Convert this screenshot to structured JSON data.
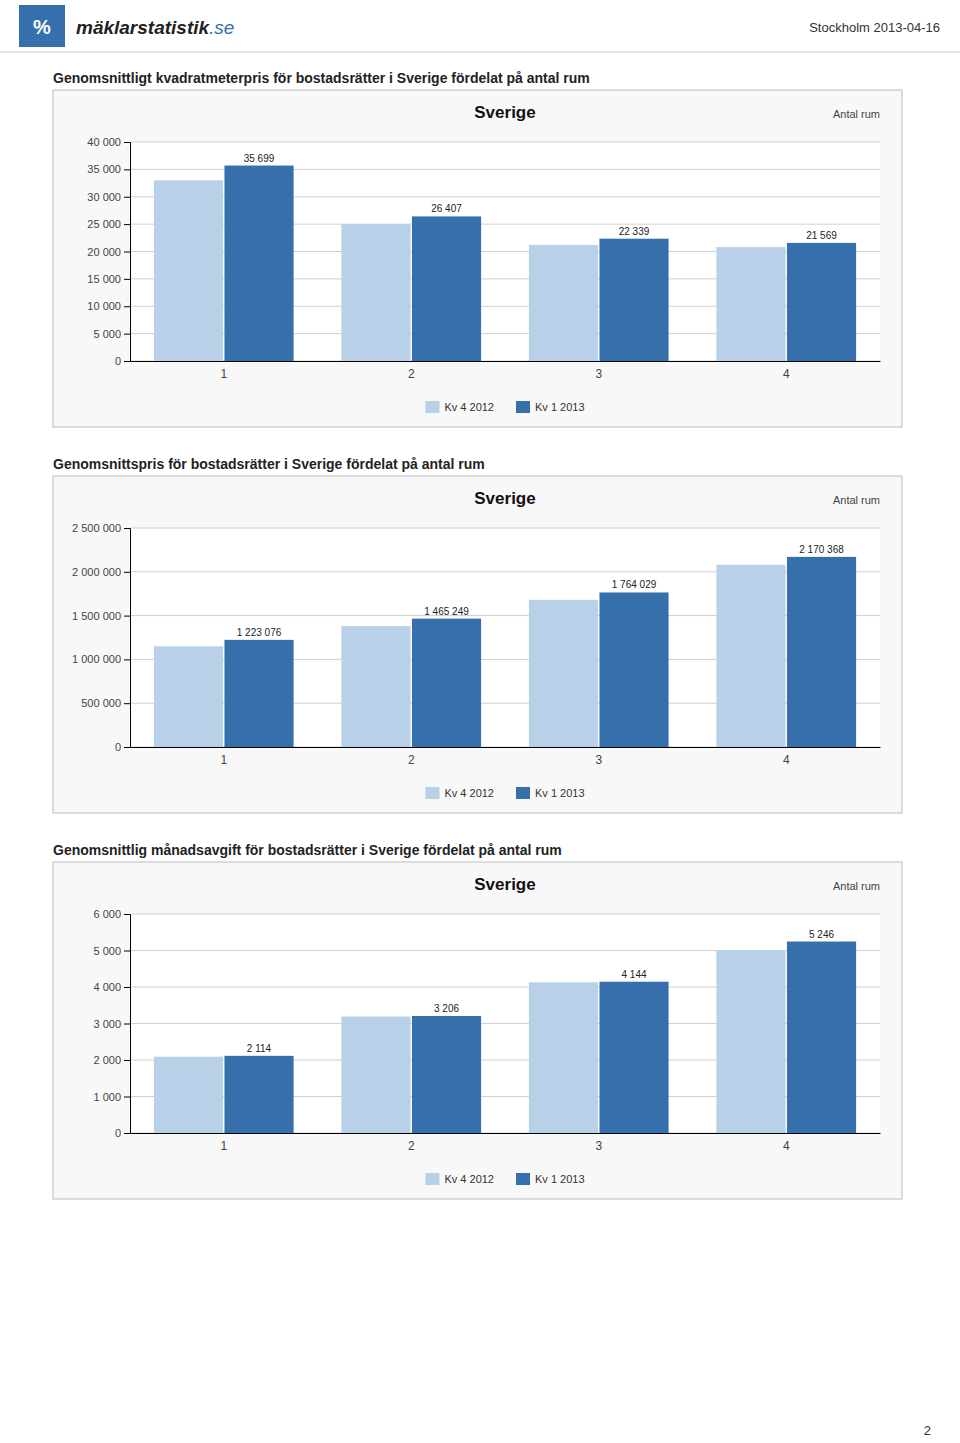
{
  "annotations": [
    "%",
    "mäklarstatistik",
    ".se",
    "Stockholm 2013-04-16",
    "2"
  ],
  "chart_data": [
    {
      "type": "bar",
      "title": "Genomsnittligt kvadratmeterpris för bostadsrätter i Sverige fördelat på antal rum",
      "subtitle": "Sverige",
      "xlabel": "Antal rum",
      "categories": [
        "1",
        "2",
        "3",
        "4"
      ],
      "series": [
        {
          "name": "Kv 4 2012",
          "color": "#b8d0e8",
          "values": [
            33000,
            25000,
            21200,
            20800
          ]
        },
        {
          "name": "Kv 1 2013",
          "color": "#3570ad",
          "values": [
            35699,
            26407,
            22339,
            21569
          ],
          "data_labels": true,
          "value_labels": [
            "35 699",
            "26 407",
            "22 339",
            "21 569"
          ]
        }
      ],
      "ylim": [
        0,
        40000
      ],
      "yticks": [
        0,
        {
          "value": 5000,
          "label": "5 000"
        },
        {
          "value": 10000,
          "label": "10 000"
        },
        {
          "value": 15000,
          "label": "15 000"
        },
        {
          "value": 20000,
          "label": "20 000"
        },
        {
          "value": 25000,
          "label": "25 000"
        },
        {
          "value": 30000,
          "label": "30 000"
        },
        {
          "value": 35000,
          "label": "35 000"
        },
        {
          "value": 40000,
          "label": "40 000"
        }
      ],
      "grid": true,
      "legend": "bottom"
    },
    {
      "type": "bar",
      "title": "Genomsnittspris för bostadsrätter i Sverige fördelat på antal rum",
      "subtitle": "Sverige",
      "xlabel": "Antal rum",
      "categories": [
        "1",
        "2",
        "3",
        "4"
      ],
      "series": [
        {
          "name": "Kv 4 2012",
          "color": "#b8d0e8",
          "values": [
            1150000,
            1380000,
            1680000,
            2080000
          ]
        },
        {
          "name": "Kv 1 2013",
          "color": "#3570ad",
          "values": [
            1223076,
            1465249,
            1764029,
            2170368
          ],
          "data_labels": true,
          "value_labels": [
            "1 223 076",
            "1 465 249",
            "1 764 029",
            "2 170 368"
          ]
        }
      ],
      "ylim": [
        0,
        2500000
      ],
      "yticks": [
        0,
        {
          "value": 500000,
          "label": "500 000"
        },
        {
          "value": 1000000,
          "label": "1 000 000"
        },
        {
          "value": 1500000,
          "label": "1 500 000"
        },
        {
          "value": 2000000,
          "label": "2 000 000"
        },
        {
          "value": 2500000,
          "label": "2 500 000"
        }
      ],
      "grid": true,
      "legend": "bottom"
    },
    {
      "type": "bar",
      "title": "Genomsnittlig månadsavgift för bostadsrätter i Sverige fördelat på antal rum",
      "subtitle": "Sverige",
      "xlabel": "Antal rum",
      "categories": [
        "1",
        "2",
        "3",
        "4"
      ],
      "series": [
        {
          "name": "Kv 4 2012",
          "color": "#b8d0e8",
          "values": [
            2090,
            3190,
            4130,
            5000
          ]
        },
        {
          "name": "Kv 1 2013",
          "color": "#3570ad",
          "values": [
            2114,
            3206,
            4144,
            5246
          ],
          "data_labels": true,
          "value_labels": [
            "2 114",
            "3 206",
            "4 144",
            "5 246"
          ]
        }
      ],
      "ylim": [
        0,
        6000
      ],
      "yticks": [
        0,
        {
          "value": 1000,
          "label": "1 000"
        },
        {
          "value": 2000,
          "label": "2 000"
        },
        {
          "value": 3000,
          "label": "3 000"
        },
        {
          "value": 4000,
          "label": "4 000"
        },
        {
          "value": 5000,
          "label": "5 000"
        },
        {
          "value": 6000,
          "label": "6 000"
        }
      ],
      "grid": true,
      "legend": "bottom"
    }
  ]
}
